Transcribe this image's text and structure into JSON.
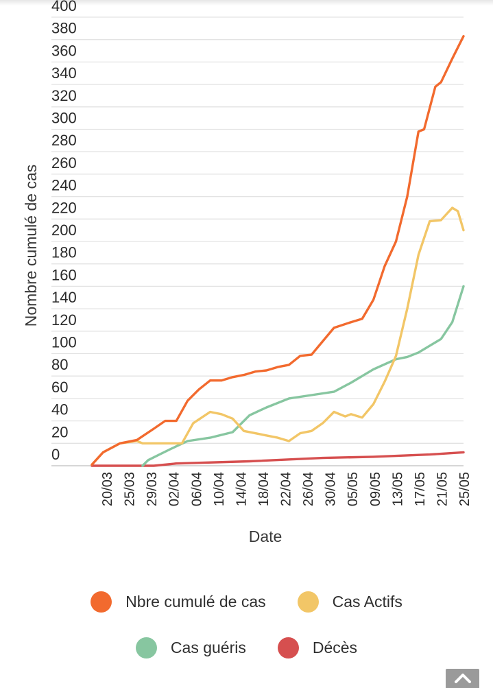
{
  "chart_data": {
    "type": "line",
    "title": "",
    "xlabel": "Date",
    "ylabel": "Nombre cumulé de cas",
    "ylim": [
      0,
      400
    ],
    "y_ticks": [
      0,
      20,
      40,
      60,
      80,
      100,
      120,
      140,
      160,
      180,
      200,
      220,
      240,
      260,
      280,
      300,
      320,
      340,
      360,
      380,
      400
    ],
    "x_ticks": [
      "20/03",
      "25/03",
      "29/03",
      "02/04",
      "06/04",
      "10/04",
      "14/04",
      "18/04",
      "22/04",
      "26/04",
      "30/04",
      "05/05",
      "09/05",
      "13/05",
      "17/05",
      "21/05",
      "25/05"
    ],
    "x_range": [
      "2020-03-20",
      "2020-05-25"
    ],
    "grid": true,
    "legend_position": "bottom",
    "series": [
      {
        "name": "Nbre cumulé de cas",
        "color": "#f26a2e",
        "points": [
          [
            "2020-03-20",
            1
          ],
          [
            "2020-03-22",
            12
          ],
          [
            "2020-03-25",
            20
          ],
          [
            "2020-03-28",
            23
          ],
          [
            "2020-03-31",
            33
          ],
          [
            "2020-04-02",
            40
          ],
          [
            "2020-04-04",
            40
          ],
          [
            "2020-04-06",
            58
          ],
          [
            "2020-04-08",
            68
          ],
          [
            "2020-04-10",
            76
          ],
          [
            "2020-04-12",
            76
          ],
          [
            "2020-04-14",
            79
          ],
          [
            "2020-04-16",
            81
          ],
          [
            "2020-04-18",
            84
          ],
          [
            "2020-04-20",
            85
          ],
          [
            "2020-04-22",
            88
          ],
          [
            "2020-04-24",
            90
          ],
          [
            "2020-04-26",
            98
          ],
          [
            "2020-04-28",
            99
          ],
          [
            "2020-04-30",
            111
          ],
          [
            "2020-05-02",
            123
          ],
          [
            "2020-05-05",
            128
          ],
          [
            "2020-05-07",
            131
          ],
          [
            "2020-05-09",
            148
          ],
          [
            "2020-05-11",
            178
          ],
          [
            "2020-05-13",
            200
          ],
          [
            "2020-05-15",
            240
          ],
          [
            "2020-05-17",
            298
          ],
          [
            "2020-05-18",
            300
          ],
          [
            "2020-05-20",
            338
          ],
          [
            "2020-05-21",
            342
          ],
          [
            "2020-05-23",
            363
          ],
          [
            "2020-05-25",
            383
          ]
        ]
      },
      {
        "name": "Cas Actifs",
        "color": "#f2c667",
        "points": [
          [
            "2020-03-20",
            1
          ],
          [
            "2020-03-22",
            12
          ],
          [
            "2020-03-25",
            20
          ],
          [
            "2020-03-28",
            22
          ],
          [
            "2020-03-29",
            20
          ],
          [
            "2020-04-02",
            20
          ],
          [
            "2020-04-05",
            20
          ],
          [
            "2020-04-07",
            38
          ],
          [
            "2020-04-10",
            48
          ],
          [
            "2020-04-12",
            46
          ],
          [
            "2020-04-14",
            42
          ],
          [
            "2020-04-16",
            31
          ],
          [
            "2020-04-18",
            29
          ],
          [
            "2020-04-22",
            25
          ],
          [
            "2020-04-24",
            22
          ],
          [
            "2020-04-26",
            29
          ],
          [
            "2020-04-28",
            31
          ],
          [
            "2020-04-30",
            38
          ],
          [
            "2020-05-02",
            48
          ],
          [
            "2020-05-04",
            44
          ],
          [
            "2020-05-05",
            46
          ],
          [
            "2020-05-07",
            43
          ],
          [
            "2020-05-09",
            55
          ],
          [
            "2020-05-11",
            75
          ],
          [
            "2020-05-13",
            98
          ],
          [
            "2020-05-15",
            140
          ],
          [
            "2020-05-17",
            188
          ],
          [
            "2020-05-19",
            218
          ],
          [
            "2020-05-21",
            219
          ],
          [
            "2020-05-23",
            230
          ],
          [
            "2020-05-24",
            227
          ],
          [
            "2020-05-25",
            210
          ]
        ]
      },
      {
        "name": "Cas guéris",
        "color": "#87c6a0",
        "points": [
          [
            "2020-03-29",
            0
          ],
          [
            "2020-03-30",
            5
          ],
          [
            "2020-04-01",
            10
          ],
          [
            "2020-04-03",
            15
          ],
          [
            "2020-04-06",
            22
          ],
          [
            "2020-04-10",
            25
          ],
          [
            "2020-04-14",
            30
          ],
          [
            "2020-04-17",
            45
          ],
          [
            "2020-04-20",
            52
          ],
          [
            "2020-04-24",
            60
          ],
          [
            "2020-04-28",
            63
          ],
          [
            "2020-05-02",
            66
          ],
          [
            "2020-05-05",
            74
          ],
          [
            "2020-05-09",
            86
          ],
          [
            "2020-05-13",
            95
          ],
          [
            "2020-05-15",
            97
          ],
          [
            "2020-05-17",
            101
          ],
          [
            "2020-05-19",
            107
          ],
          [
            "2020-05-21",
            113
          ],
          [
            "2020-05-23",
            128
          ],
          [
            "2020-05-25",
            160
          ]
        ]
      },
      {
        "name": "Décès",
        "color": "#d64f4f",
        "points": [
          [
            "2020-03-20",
            0
          ],
          [
            "2020-03-31",
            0
          ],
          [
            "2020-04-04",
            2
          ],
          [
            "2020-04-17",
            4
          ],
          [
            "2020-04-30",
            7
          ],
          [
            "2020-05-09",
            8
          ],
          [
            "2020-05-19",
            10
          ],
          [
            "2020-05-25",
            12
          ]
        ]
      }
    ]
  },
  "legend": {
    "row1": [
      "Nbre cumulé de cas",
      "Cas Actifs"
    ],
    "row2": [
      "Cas guéris",
      "Décès"
    ]
  },
  "scroll_top_icon": "chevron-up-icon"
}
